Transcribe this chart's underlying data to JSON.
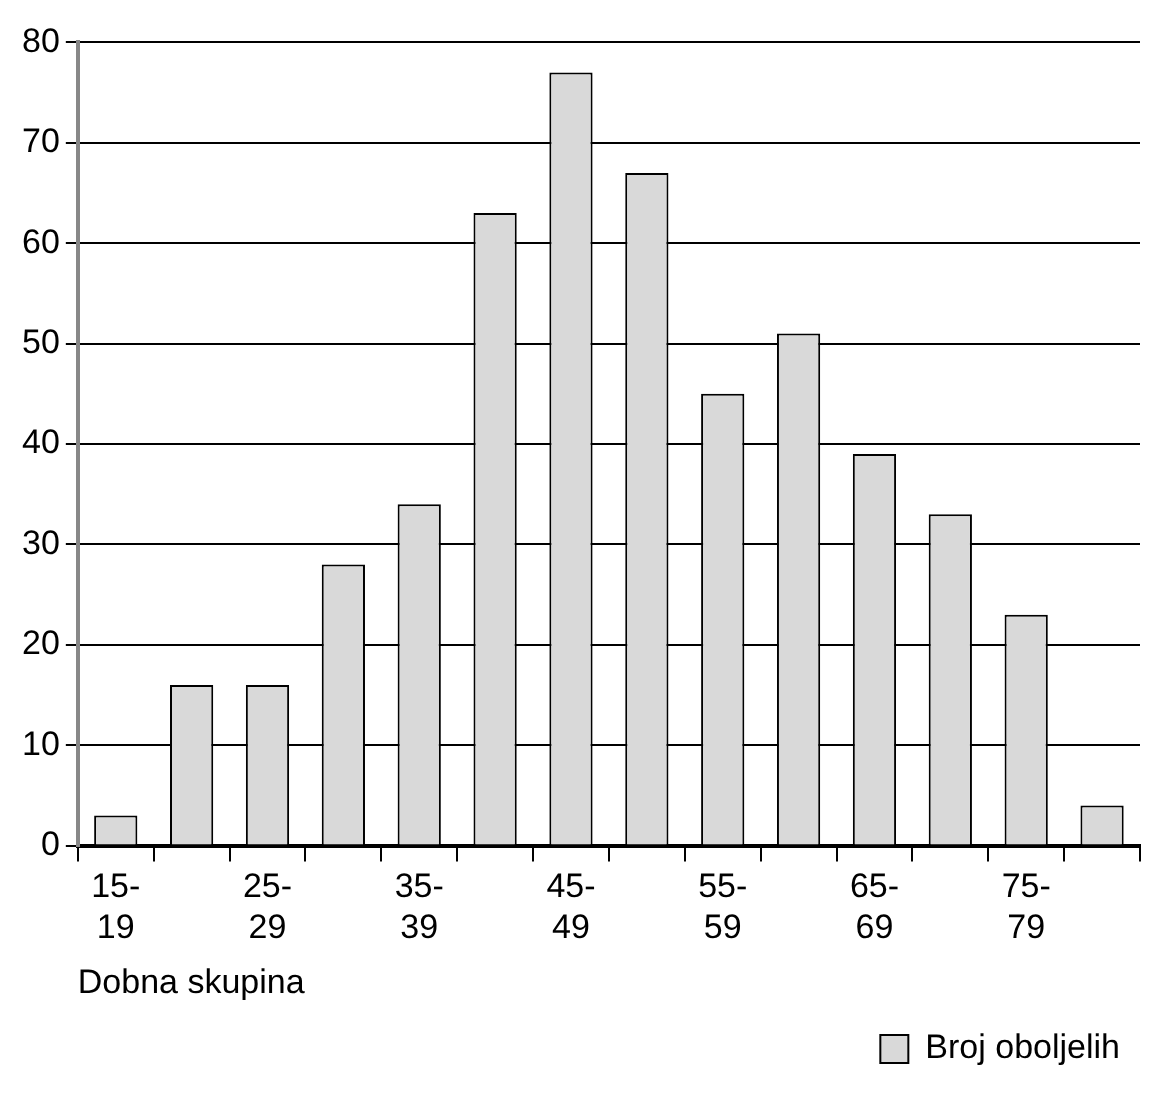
{
  "chart_data": {
    "type": "bar",
    "xlabel": "Dobna skupina",
    "categories": [
      "15-19",
      null,
      "25-29",
      null,
      "35-39",
      null,
      "45-49",
      null,
      "55-59",
      null,
      "65-69",
      null,
      "75-79",
      null
    ],
    "series": [
      {
        "name": "Broj oboljelih",
        "color": "#d9d9d9",
        "values": [
          3,
          16,
          16,
          28,
          34,
          63,
          77,
          67,
          45,
          51,
          39,
          33,
          23,
          4
        ]
      }
    ],
    "ylim": [
      0,
      80
    ],
    "yticks": [
      0,
      10,
      20,
      30,
      40,
      50,
      60,
      70,
      80
    ],
    "grid": "y",
    "legend": "bottom right"
  }
}
